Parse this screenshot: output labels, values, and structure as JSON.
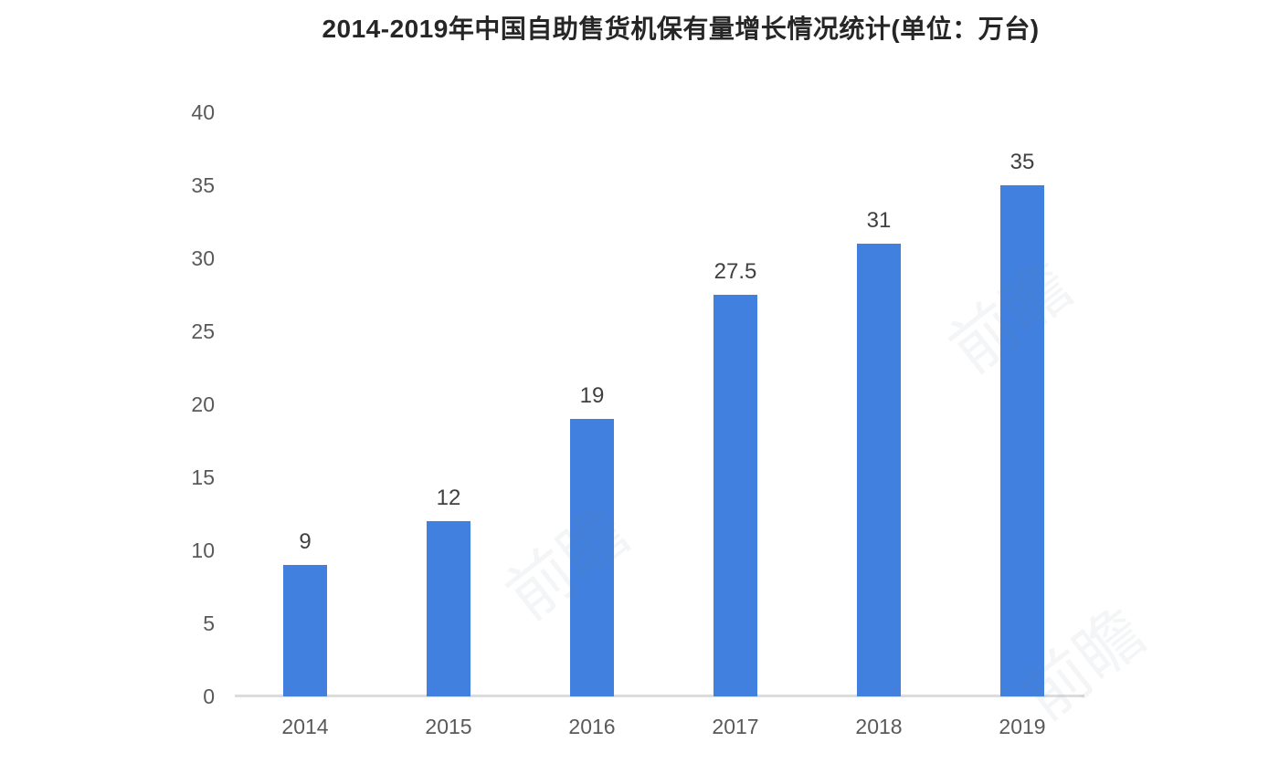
{
  "title": "2014-2019年中国自助售货机保有量增长情况统计(单位：万台)",
  "watermark_text": "前瞻",
  "colors": {
    "bar": "#4180de",
    "title_text": "#262626",
    "axis_tick_text": "#595959",
    "value_label_text": "#404040",
    "axis_line": "#dcdcdc"
  },
  "chart_data": {
    "type": "bar",
    "title": "2014-2019年中国自助售货机保有量增长情况统计(单位：万台)",
    "unit": "万台",
    "categories": [
      "2014",
      "2015",
      "2016",
      "2017",
      "2018",
      "2019"
    ],
    "values": [
      9,
      12,
      19,
      27.5,
      31,
      35
    ],
    "value_labels": [
      "9",
      "12",
      "19",
      "27.5",
      "31",
      "35"
    ],
    "xlabel": "",
    "ylabel": "",
    "ylim": [
      0,
      40
    ],
    "yticks": [
      0,
      5,
      10,
      15,
      20,
      25,
      30,
      35,
      40
    ],
    "grid": false,
    "legend": "none"
  }
}
